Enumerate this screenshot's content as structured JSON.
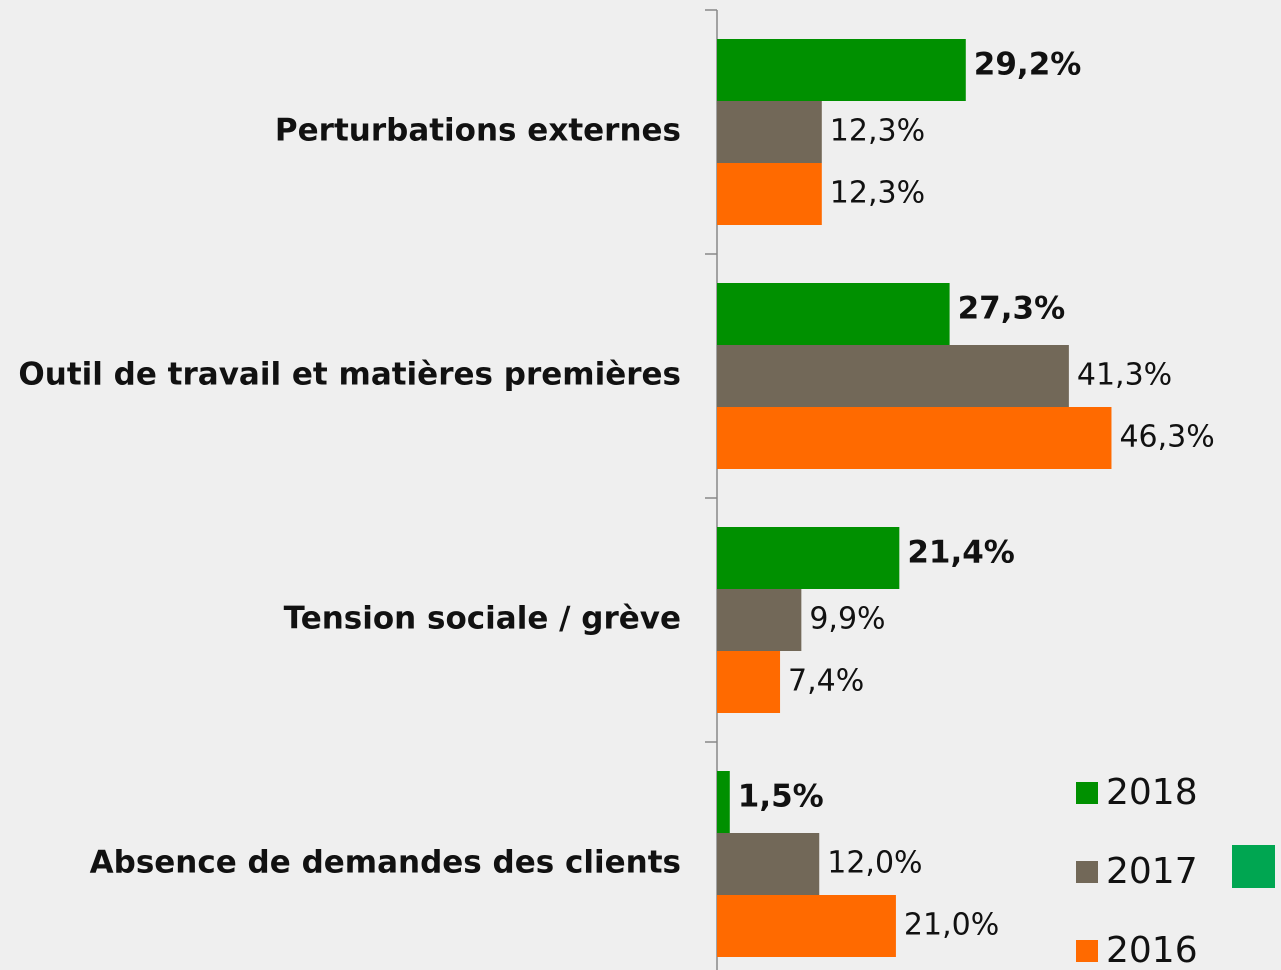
{
  "chart_data": {
    "type": "bar",
    "orientation": "horizontal",
    "categories": [
      "Perturbations externes",
      "Outil de travail et matières premières",
      "Tension sociale / grève",
      "Absence de demandes des clients"
    ],
    "series": [
      {
        "name": "2018",
        "color": "#009000",
        "values": [
          29.2,
          27.3,
          21.4,
          1.5
        ],
        "value_labels": [
          "29,2%",
          "27,3%",
          "21,4%",
          "1,5%"
        ]
      },
      {
        "name": "2017",
        "color": "#726858",
        "values": [
          12.3,
          41.3,
          9.9,
          12.0
        ],
        "value_labels": [
          "12,3%",
          "41,3%",
          "9,9%",
          "12,0%"
        ]
      },
      {
        "name": "2016",
        "color": "#ff6a00",
        "values": [
          12.3,
          46.3,
          7.4,
          21.0
        ],
        "value_labels": [
          "12,3%",
          "46,3%",
          "7,4%",
          "21,0%"
        ]
      }
    ],
    "legend": "bottom-right"
  }
}
